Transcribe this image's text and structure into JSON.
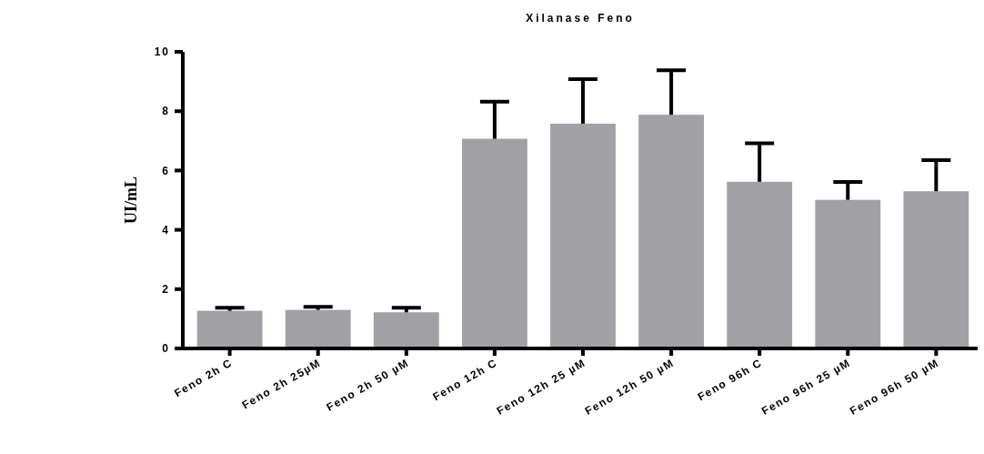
{
  "chart_data": {
    "type": "bar",
    "title": "Xilanase Feno",
    "ylabel": "UI/mL",
    "categories": [
      "Feno 2h C",
      "Feno 2h 25µM",
      "Feno 2h 50 µM",
      "Feno 12h C",
      "Feno 12h 25 µM",
      "Feno 12h 50 µM",
      "Feno 96h C",
      "Feno 96h 25 µM",
      "Feno 96h 50 µM"
    ],
    "values": [
      1.27,
      1.3,
      1.22,
      7.07,
      7.58,
      7.88,
      5.62,
      5.01,
      5.3
    ],
    "errors": [
      [
        1.27,
        1.37
      ],
      [
        1.3,
        1.4
      ],
      [
        1.22,
        1.37
      ],
      [
        7.07,
        8.32
      ],
      [
        7.58,
        9.08
      ],
      [
        7.88,
        9.38
      ],
      [
        5.62,
        6.92
      ],
      [
        5.01,
        5.61
      ],
      [
        5.3,
        6.35
      ]
    ],
    "color": "#a1a0a4",
    "ylim": [
      0,
      10
    ],
    "yticks": [
      0,
      2,
      4,
      6,
      8,
      10
    ],
    "grid": false
  }
}
